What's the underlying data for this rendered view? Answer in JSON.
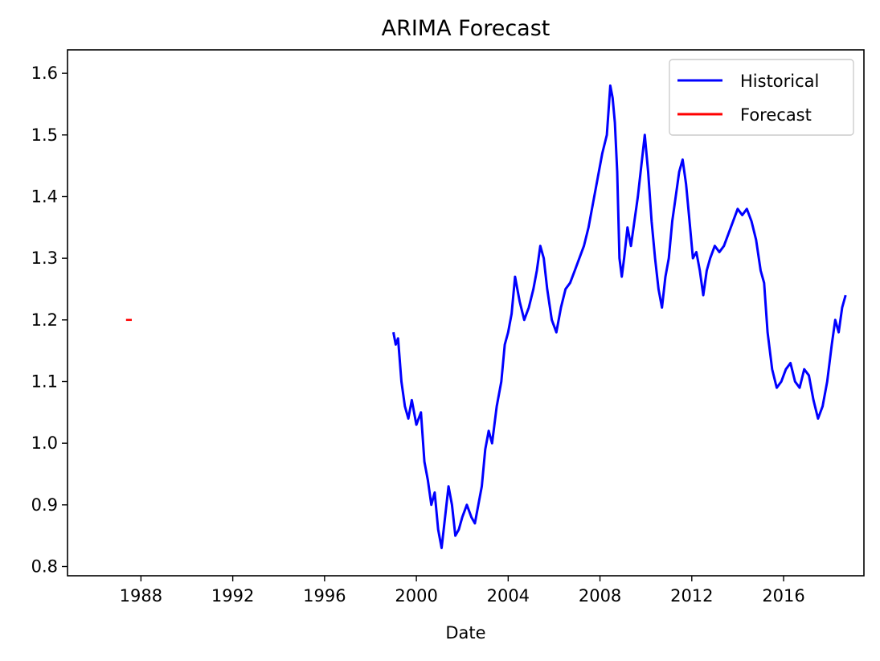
{
  "chart_data": {
    "type": "line",
    "title": "ARIMA Forecast",
    "xlabel": "Date",
    "ylabel": "",
    "xlim": [
      1984.8,
      2019.5
    ],
    "ylim": [
      0.785,
      1.638
    ],
    "xticks": [
      1988,
      1992,
      1996,
      2000,
      2004,
      2008,
      2012,
      2016
    ],
    "yticks": [
      0.8,
      0.9,
      1.0,
      1.1,
      1.2,
      1.3,
      1.4,
      1.5,
      1.6
    ],
    "ytick_labels": [
      "0.8",
      "0.9",
      "1.0",
      "1.1",
      "1.2",
      "1.3",
      "1.4",
      "1.5",
      "1.6"
    ],
    "grid": false,
    "legend_position": "top-right",
    "series": [
      {
        "name": "Historical",
        "color": "#0000ff",
        "x": [
          1999.0,
          1999.1,
          1999.2,
          1999.35,
          1999.5,
          1999.65,
          1999.8,
          2000.0,
          2000.2,
          2000.35,
          2000.5,
          2000.65,
          2000.8,
          2000.95,
          2001.1,
          2001.25,
          2001.4,
          2001.55,
          2001.7,
          2001.85,
          2002.0,
          2002.2,
          2002.4,
          2002.55,
          2002.7,
          2002.85,
          2003.0,
          2003.15,
          2003.3,
          2003.5,
          2003.7,
          2003.85,
          2004.0,
          2004.15,
          2004.3,
          2004.5,
          2004.7,
          2004.9,
          2005.1,
          2005.25,
          2005.4,
          2005.55,
          2005.7,
          2005.9,
          2006.1,
          2006.3,
          2006.5,
          2006.7,
          2006.9,
          2007.1,
          2007.3,
          2007.5,
          2007.7,
          2007.9,
          2008.1,
          2008.3,
          2008.45,
          2008.55,
          2008.65,
          2008.75,
          2008.85,
          2008.95,
          2009.05,
          2009.2,
          2009.35,
          2009.5,
          2009.65,
          2009.8,
          2009.95,
          2010.1,
          2010.25,
          2010.4,
          2010.55,
          2010.7,
          2010.85,
          2011.0,
          2011.15,
          2011.3,
          2011.45,
          2011.6,
          2011.75,
          2011.9,
          2012.05,
          2012.2,
          2012.35,
          2012.5,
          2012.65,
          2012.8,
          2013.0,
          2013.2,
          2013.4,
          2013.6,
          2013.8,
          2014.0,
          2014.2,
          2014.4,
          2014.6,
          2014.8,
          2015.0,
          2015.15,
          2015.3,
          2015.5,
          2015.7,
          2015.9,
          2016.1,
          2016.3,
          2016.5,
          2016.7,
          2016.9,
          2017.1,
          2017.3,
          2017.5,
          2017.7,
          2017.9,
          2018.1,
          2018.25,
          2018.4,
          2018.55,
          2018.7
        ],
        "values": [
          1.18,
          1.16,
          1.17,
          1.1,
          1.06,
          1.04,
          1.07,
          1.03,
          1.05,
          0.97,
          0.94,
          0.9,
          0.92,
          0.86,
          0.83,
          0.88,
          0.93,
          0.9,
          0.85,
          0.86,
          0.88,
          0.9,
          0.88,
          0.87,
          0.9,
          0.93,
          0.99,
          1.02,
          1.0,
          1.06,
          1.1,
          1.16,
          1.18,
          1.21,
          1.27,
          1.23,
          1.2,
          1.22,
          1.25,
          1.28,
          1.32,
          1.3,
          1.25,
          1.2,
          1.18,
          1.22,
          1.25,
          1.26,
          1.28,
          1.3,
          1.32,
          1.35,
          1.39,
          1.43,
          1.47,
          1.5,
          1.58,
          1.56,
          1.52,
          1.44,
          1.3,
          1.27,
          1.3,
          1.35,
          1.32,
          1.36,
          1.4,
          1.45,
          1.5,
          1.44,
          1.36,
          1.3,
          1.25,
          1.22,
          1.27,
          1.3,
          1.36,
          1.4,
          1.44,
          1.46,
          1.42,
          1.36,
          1.3,
          1.31,
          1.28,
          1.24,
          1.28,
          1.3,
          1.32,
          1.31,
          1.32,
          1.34,
          1.36,
          1.38,
          1.37,
          1.38,
          1.36,
          1.33,
          1.28,
          1.26,
          1.18,
          1.12,
          1.09,
          1.1,
          1.12,
          1.13,
          1.1,
          1.09,
          1.12,
          1.11,
          1.07,
          1.04,
          1.06,
          1.1,
          1.16,
          1.2,
          1.18,
          1.22,
          1.24
        ]
      },
      {
        "name": "Forecast",
        "color": "#ff0000",
        "x": [
          1987.35,
          1987.6
        ],
        "values": [
          1.2,
          1.2
        ]
      }
    ]
  }
}
